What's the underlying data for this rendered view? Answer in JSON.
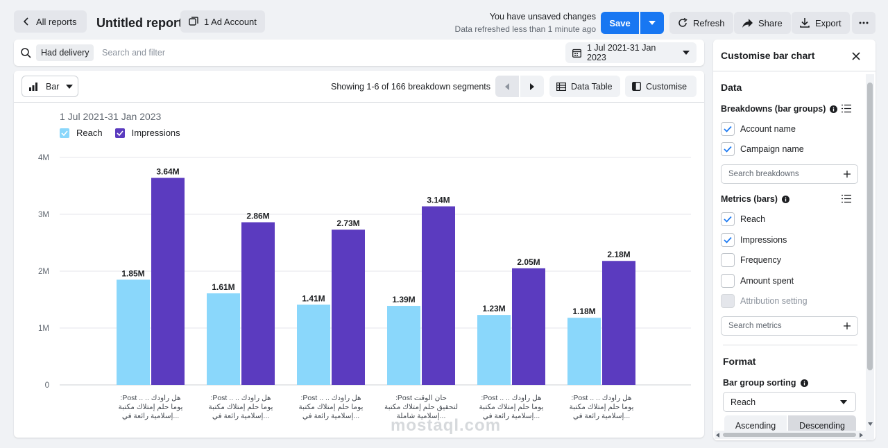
{
  "header": {
    "back_label": "All reports",
    "report_title": "Untitled report",
    "ad_account_label": "1 Ad Account",
    "unsaved_text": "You have unsaved changes",
    "refreshed_text": "Data refreshed less than 1 minute ago",
    "save_label": "Save",
    "refresh_label": "Refresh",
    "share_label": "Share",
    "export_label": "Export"
  },
  "filter": {
    "chip_label": "Had delivery",
    "search_placeholder": "Search and filter",
    "date_range": "1 Jul 2021-31 Jan 2023"
  },
  "toolbar": {
    "chart_type_label": "Bar",
    "showing_text": "Showing 1-6 of 166 breakdown segments",
    "data_table_label": "Data Table",
    "customise_label": "Customise"
  },
  "chart_data": {
    "type": "bar",
    "title": "1 Jul 2021-31 Jan 2023",
    "xlabel": "",
    "ylabel": "",
    "ylim": [
      0,
      4000000
    ],
    "yticks": [
      "0",
      "1M",
      "2M",
      "3M",
      "4M"
    ],
    "legend": [
      "Reach",
      "Impressions"
    ],
    "legend_position": "top-left",
    "categories": [
      [
        "هل راودك .. .. Post:",
        "يوما حلم إمتلاك مكتبة",
        "...إسلامية رائعة في"
      ],
      [
        "هل راودك .. .. Post:",
        "يوما حلم إمتلاك مكتبة",
        "...إسلامية رائعة في"
      ],
      [
        "هل راودك .. .. Post:",
        "يوما حلم إمتلاك مكتبة",
        "...إسلامية رائعة في"
      ],
      [
        "حان الوقت Post:",
        "لتحقيق حلم إمتلاك مكتبة",
        "...إسلامية شاملة"
      ],
      [
        "هل راودك .. .. Post:",
        "يوما حلم إمتلاك مكتبة",
        "...إسلامية رائعة في"
      ],
      [
        "هل راودك .. .. Post:",
        "يوما حلم إمتلاك مكتبة",
        "...إسلامية رائعة في"
      ]
    ],
    "series": [
      {
        "name": "Reach",
        "color": "#8ad7fb",
        "values": [
          1850000,
          1610000,
          1410000,
          1390000,
          1230000,
          1180000
        ],
        "labels": [
          "1.85M",
          "1.61M",
          "1.41M",
          "1.39M",
          "1.23M",
          "1.18M"
        ]
      },
      {
        "name": "Impressions",
        "color": "#5b3bbf",
        "values": [
          3640000,
          2860000,
          2730000,
          3140000,
          2050000,
          2180000
        ],
        "labels": [
          "3.64M",
          "2.86M",
          "2.73M",
          "3.14M",
          "2.05M",
          "2.18M"
        ]
      }
    ],
    "grid": true
  },
  "panel": {
    "title": "Customise bar chart",
    "data_heading": "Data",
    "breakdowns_title": "Breakdowns (bar groups)",
    "breakdowns": [
      {
        "label": "Account name",
        "checked": true
      },
      {
        "label": "Campaign name",
        "checked": true
      }
    ],
    "breakdowns_search_placeholder": "Search breakdowns",
    "metrics_title": "Metrics (bars)",
    "metrics": [
      {
        "label": "Reach",
        "checked": true
      },
      {
        "label": "Impressions",
        "checked": true
      },
      {
        "label": "Frequency",
        "checked": false
      },
      {
        "label": "Amount spent",
        "checked": false
      },
      {
        "label": "Attribution setting",
        "checked": false,
        "disabled": true
      }
    ],
    "metrics_search_placeholder": "Search metrics",
    "format_heading": "Format",
    "sorting_title": "Bar group sorting",
    "sorting_value": "Reach",
    "ascending_label": "Ascending",
    "descending_label": "Descending"
  },
  "watermark": "mostaql.com",
  "colors": {
    "accent": "#1877f2",
    "reach": "#8ad7fb",
    "impressions": "#5b3bbf"
  }
}
